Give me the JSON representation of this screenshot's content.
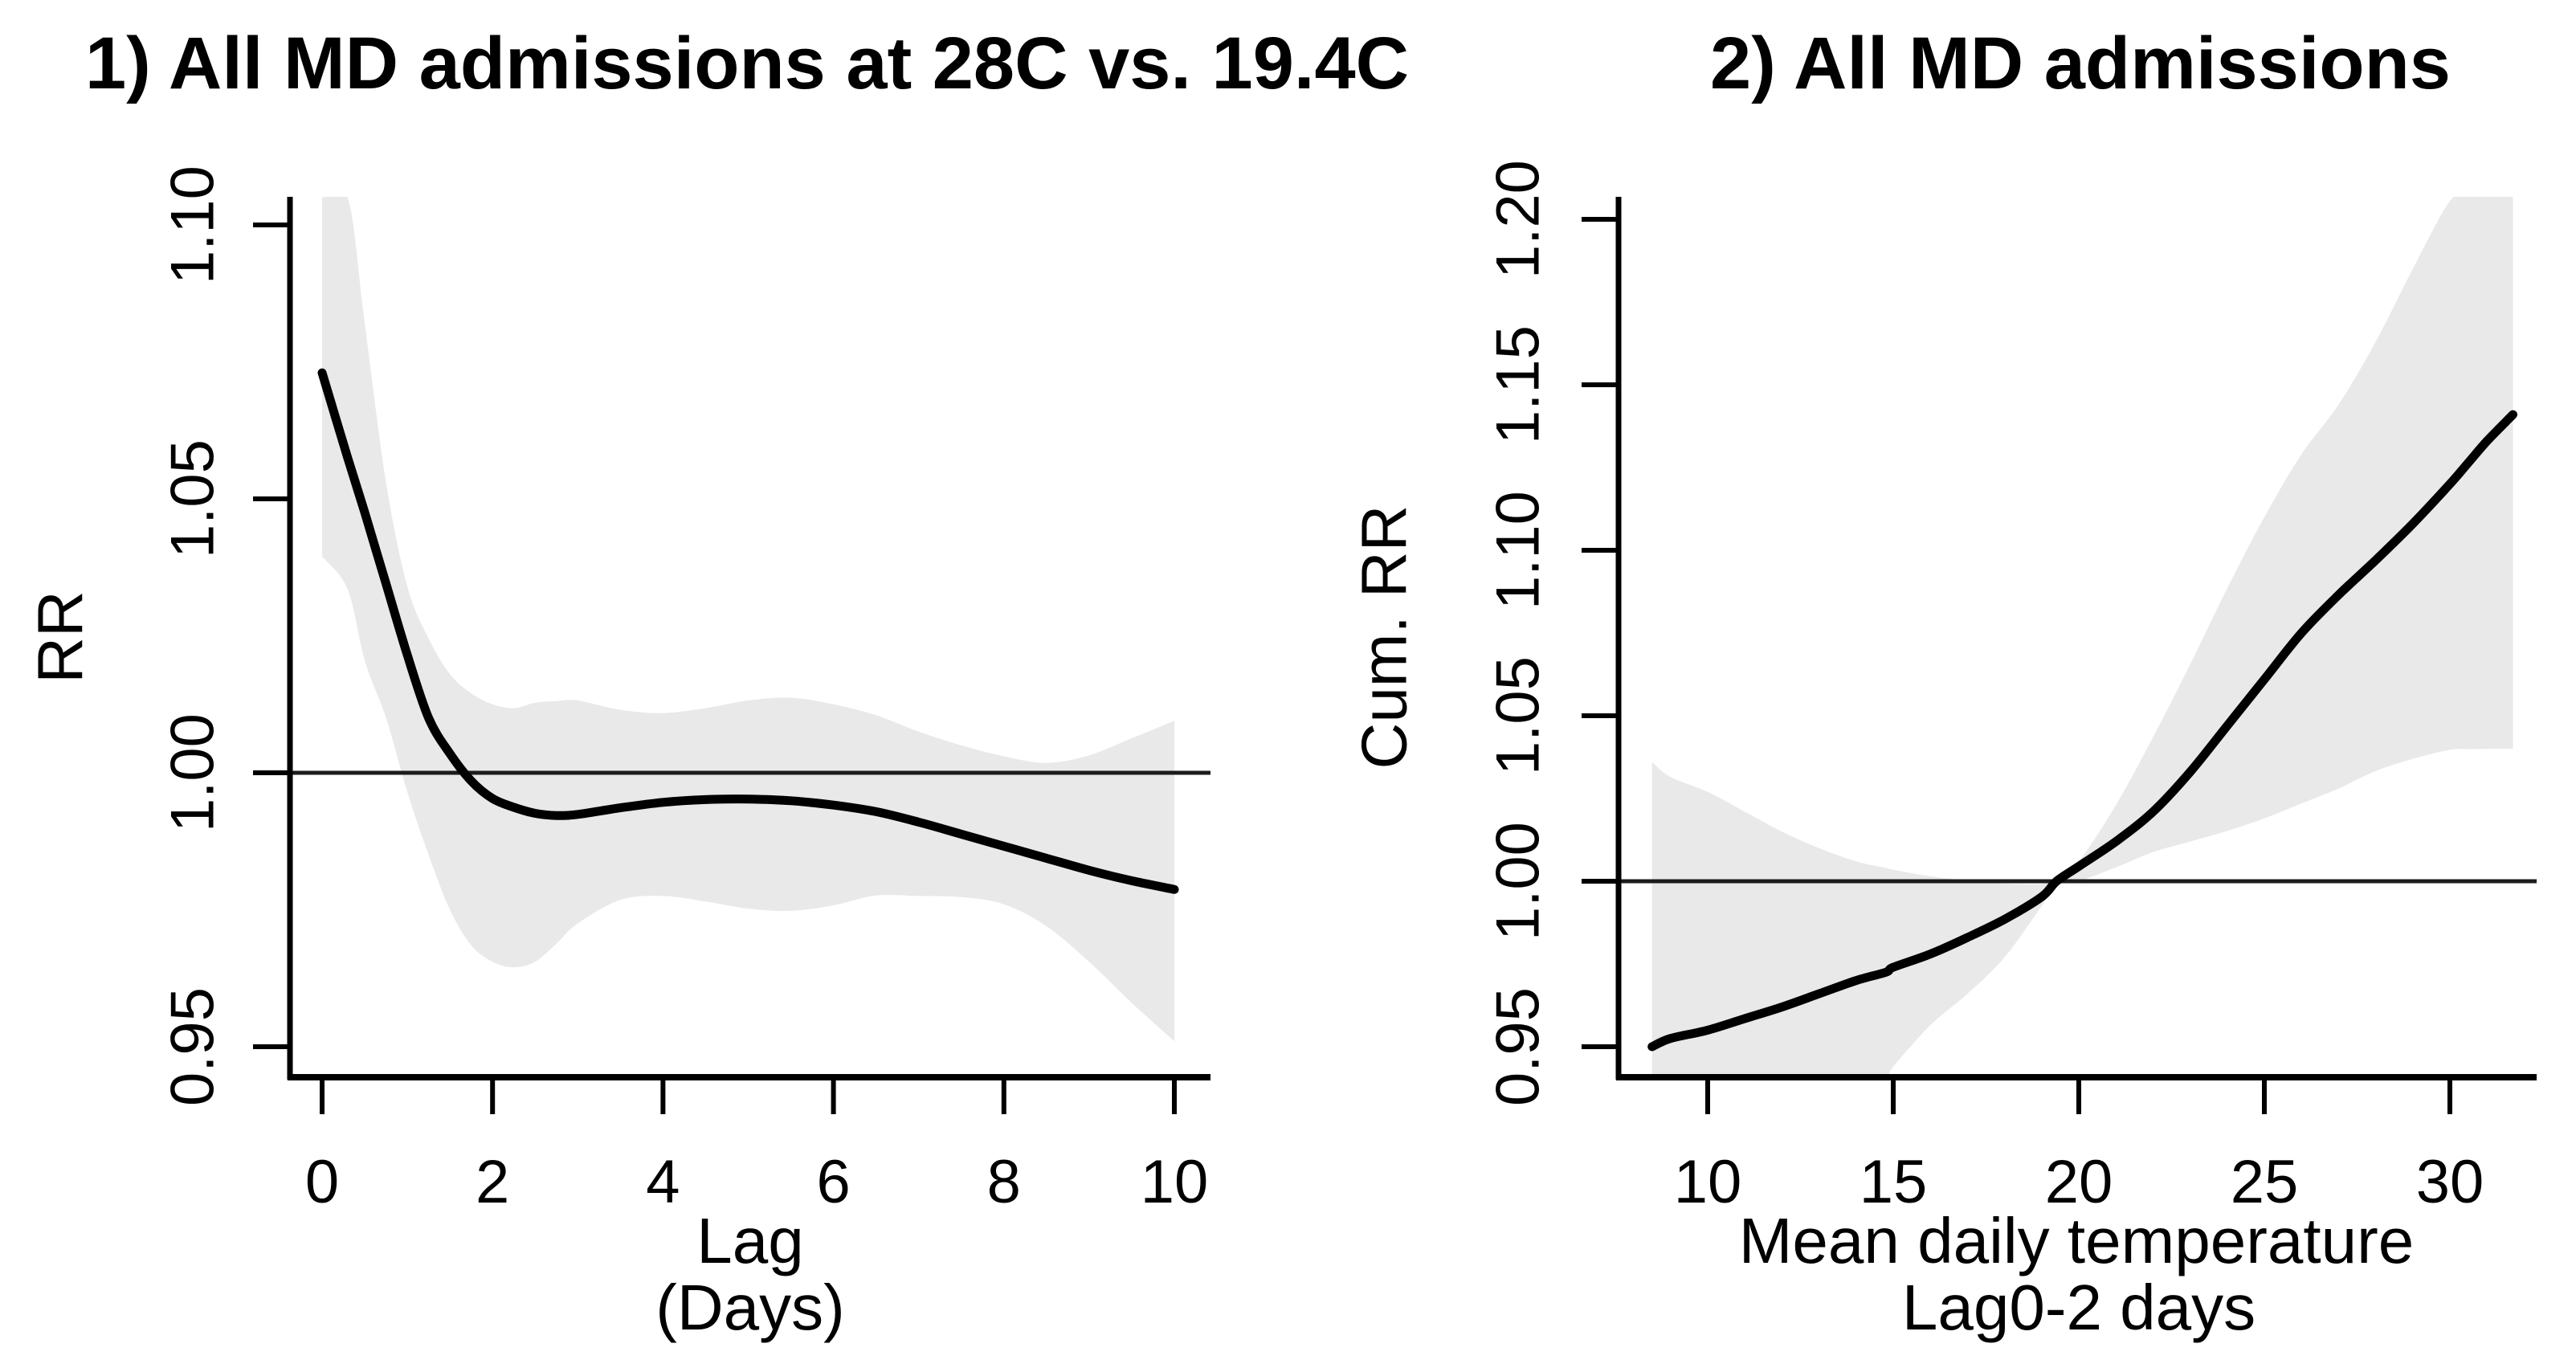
{
  "figure": {
    "background": "#ffffff",
    "band_color": "#e9e9e9",
    "curve_color": "#000000",
    "axis_color": "#000000",
    "ref_line_color": "#1c1c1c"
  },
  "chart_data": [
    {
      "type": "line",
      "title": "1) All MD admissions at 28C vs. 19.4C",
      "ylabel": "RR",
      "xlabel": "Lag (Days)",
      "xlabel_lines": [
        "Lag",
        "(Days)"
      ],
      "xlim": [
        -0.4,
        10.4
      ],
      "ylim": [
        0.9437,
        1.105
      ],
      "x_ticks": {
        "values": [
          0,
          2,
          4,
          6,
          8,
          10
        ],
        "labels": [
          "0",
          "2",
          "4",
          "6",
          "8",
          "10"
        ]
      },
      "y_ticks": {
        "values": [
          0.95,
          1.0,
          1.05,
          1.1
        ],
        "labels": [
          "0.95",
          "1.00",
          "1.05",
          "1.10"
        ]
      },
      "reference_line_y": 1.0,
      "grid": false,
      "legend": "none",
      "ci_style": "shaded band (95% CI)",
      "x": [
        0,
        0.3,
        0.5,
        0.75,
        1,
        1.25,
        1.5,
        1.75,
        2,
        2.25,
        2.5,
        2.75,
        3,
        3.5,
        4,
        4.5,
        5,
        5.5,
        6,
        6.5,
        7,
        7.5,
        8,
        8.5,
        9,
        9.5,
        10
      ],
      "series": [
        {
          "name": "RR estimate",
          "values": [
            1.073,
            1.0575,
            1.0475,
            1.0345,
            1.0215,
            1.01,
            1.0035,
            0.9985,
            0.9953,
            0.9937,
            0.9926,
            0.9922,
            0.9924,
            0.9936,
            0.9946,
            0.9951,
            0.9952,
            0.9949,
            0.9941,
            0.9929,
            0.991,
            0.9888,
            0.9866,
            0.9844,
            0.9822,
            0.9803,
            0.9787
          ]
        },
        {
          "name": "95% CI upper",
          "values": [
            1.105,
            1.105,
            1.082,
            1.053,
            1.034,
            1.0245,
            1.018,
            1.0145,
            1.0125,
            1.0118,
            1.0128,
            1.0131,
            1.0132,
            1.0115,
            1.0109,
            1.0118,
            1.0132,
            1.0137,
            1.0125,
            1.0105,
            1.0075,
            1.005,
            1.003,
            1.0018,
            1.0032,
            1.0063,
            1.0095
          ]
        },
        {
          "name": "95% CI lower",
          "values": [
            1.0395,
            1.0335,
            1.0205,
            1.01,
            0.9965,
            0.985,
            0.975,
            0.9685,
            0.9655,
            0.9645,
            0.9655,
            0.9688,
            0.9725,
            0.9768,
            0.9775,
            0.9765,
            0.9752,
            0.9748,
            0.9758,
            0.9776,
            0.9775,
            0.9773,
            0.976,
            0.972,
            0.9655,
            0.958,
            0.951
          ]
        }
      ]
    },
    {
      "type": "line",
      "title": "2) All MD admissions",
      "ylabel": "Cum. RR",
      "xlabel": "Mean daily temperature Lag0-2 days",
      "xlabel_lines": [
        "Mean daily temperature",
        "Lag0-2 days"
      ],
      "xlim": [
        7.6,
        32.4
      ],
      "ylim": [
        0.9407,
        1.2068
      ],
      "x_ticks": {
        "values": [
          10,
          15,
          20,
          25,
          30
        ],
        "labels": [
          "10",
          "15",
          "20",
          "25",
          "30"
        ]
      },
      "y_ticks": {
        "values": [
          0.95,
          1.0,
          1.05,
          1.1,
          1.15,
          1.2
        ],
        "labels": [
          "0.95",
          "1.00",
          "1.05",
          "1.10",
          "1.15",
          "1.20"
        ]
      },
      "reference_line_y": 1.0,
      "reference_temperature": 19.4,
      "grid": false,
      "legend": "none",
      "ci_style": "shaded band (95% CI)",
      "x": [
        8.5,
        9,
        10,
        11,
        12,
        13,
        14,
        14.8,
        15,
        16,
        17,
        18,
        19,
        19.4,
        20,
        21,
        22,
        23,
        24,
        25,
        26,
        27,
        28,
        29,
        30,
        30.5,
        31,
        31.7
      ],
      "series": [
        {
          "name": "Cumulative RR estimate",
          "values": [
            0.95,
            0.9525,
            0.955,
            0.9585,
            0.962,
            0.966,
            0.97,
            0.9725,
            0.974,
            0.978,
            0.983,
            0.9885,
            0.9953,
            1.0,
            1.0045,
            1.012,
            1.021,
            1.033,
            1.047,
            1.061,
            1.075,
            1.0865,
            1.097,
            1.108,
            1.12,
            1.1265,
            1.133,
            1.141
          ]
        },
        {
          "name": "95% CI upper",
          "values": [
            1.036,
            1.0315,
            1.027,
            1.021,
            1.015,
            1.01,
            1.006,
            1.004,
            1.0035,
            1.0015,
            1.0002,
            0.9993,
            0.9992,
            1.0005,
            1.006,
            1.023,
            1.0435,
            1.0655,
            1.0885,
            1.11,
            1.129,
            1.144,
            1.163,
            1.185,
            1.2055,
            1.2068,
            1.2068,
            1.2068
          ]
        },
        {
          "name": "95% CI lower",
          "values": [
            0.9407,
            0.9407,
            0.9407,
            0.9407,
            0.9407,
            0.9407,
            0.9407,
            0.9407,
            0.944,
            0.9565,
            0.966,
            0.977,
            0.9925,
            0.9988,
            1.0,
            1.0042,
            1.0088,
            1.012,
            1.0152,
            1.019,
            1.0235,
            1.028,
            1.0333,
            1.037,
            1.0397,
            1.0399,
            1.04,
            1.04
          ]
        }
      ]
    }
  ]
}
